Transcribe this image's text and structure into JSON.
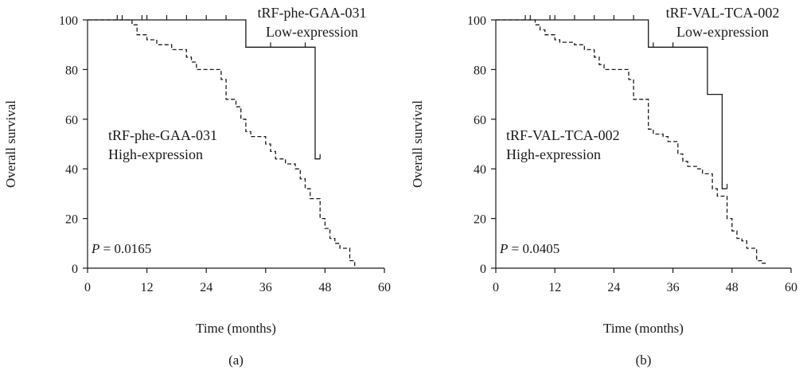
{
  "chart_data": [
    {
      "type": "line",
      "panel_label": "(a)",
      "xlabel": "Time (months)",
      "ylabel": "Overall survival",
      "xlim": [
        0,
        60
      ],
      "ylim": [
        0,
        100
      ],
      "xticks": [
        0,
        12,
        24,
        36,
        48,
        60
      ],
      "yticks": [
        0,
        20,
        40,
        60,
        80,
        100
      ],
      "p_label": "P",
      "p_value": "= 0.0165",
      "series": [
        {
          "label_lines": [
            "tRF-phe-GAA-031",
            "Low-expression"
          ],
          "style": "solid",
          "steps": [
            [
              0,
              100
            ],
            [
              32,
              100
            ],
            [
              32,
              89
            ],
            [
              46,
              89
            ],
            [
              46,
              44
            ],
            [
              47,
              44
            ]
          ],
          "censor": [
            [
              6,
              100
            ],
            [
              7,
              100
            ],
            [
              11,
              100
            ],
            [
              12,
              100
            ],
            [
              16,
              100
            ],
            [
              20,
              100
            ],
            [
              24,
              100
            ],
            [
              28,
              100
            ],
            [
              37,
              89
            ],
            [
              44,
              89
            ],
            [
              47,
              44
            ]
          ]
        },
        {
          "label_lines": [
            "tRF-phe-GAA-031",
            "High-expression"
          ],
          "style": "dashed",
          "steps": [
            [
              0,
              100
            ],
            [
              9,
              100
            ],
            [
              9,
              98
            ],
            [
              10,
              98
            ],
            [
              10,
              94
            ],
            [
              12,
              94
            ],
            [
              12,
              92
            ],
            [
              14,
              92
            ],
            [
              14,
              90
            ],
            [
              17,
              90
            ],
            [
              17,
              88
            ],
            [
              20,
              88
            ],
            [
              20,
              85
            ],
            [
              21,
              85
            ],
            [
              21,
              83
            ],
            [
              22,
              83
            ],
            [
              22,
              80
            ],
            [
              27,
              80
            ],
            [
              27,
              76
            ],
            [
              28,
              76
            ],
            [
              28,
              68
            ],
            [
              30,
              68
            ],
            [
              30,
              65
            ],
            [
              31,
              65
            ],
            [
              31,
              60
            ],
            [
              32,
              60
            ],
            [
              32,
              55
            ],
            [
              33,
              55
            ],
            [
              33,
              53
            ],
            [
              36,
              53
            ],
            [
              36,
              50
            ],
            [
              37,
              50
            ],
            [
              37,
              47
            ],
            [
              38,
              47
            ],
            [
              38,
              44
            ],
            [
              40,
              44
            ],
            [
              40,
              42
            ],
            [
              42,
              42
            ],
            [
              42,
              40
            ],
            [
              43,
              40
            ],
            [
              43,
              36
            ],
            [
              44,
              36
            ],
            [
              44,
              32
            ],
            [
              45,
              32
            ],
            [
              45,
              28
            ],
            [
              47,
              28
            ],
            [
              47,
              20
            ],
            [
              48,
              20
            ],
            [
              48,
              16
            ],
            [
              49,
              16
            ],
            [
              49,
              12
            ],
            [
              50,
              12
            ],
            [
              50,
              10
            ],
            [
              51,
              10
            ],
            [
              51,
              8
            ],
            [
              53,
              8
            ],
            [
              53,
              3
            ],
            [
              54,
              3
            ],
            [
              54,
              0
            ]
          ],
          "censor": []
        }
      ]
    },
    {
      "type": "line",
      "panel_label": "(b)",
      "xlabel": "Time (months)",
      "ylabel": "Overall survival",
      "xlim": [
        0,
        60
      ],
      "ylim": [
        0,
        100
      ],
      "xticks": [
        0,
        12,
        24,
        36,
        48,
        60
      ],
      "yticks": [
        0,
        20,
        40,
        60,
        80,
        100
      ],
      "p_label": "P",
      "p_value": "= 0.0405",
      "series": [
        {
          "label_lines": [
            "tRF-VAL-TCA-002",
            "Low-expression"
          ],
          "style": "solid",
          "steps": [
            [
              0,
              100
            ],
            [
              31,
              100
            ],
            [
              31,
              89
            ],
            [
              43,
              89
            ],
            [
              43,
              70
            ],
            [
              46,
              70
            ],
            [
              46,
              32
            ],
            [
              47,
              32
            ]
          ],
          "censor": [
            [
              6,
              100
            ],
            [
              7,
              100
            ],
            [
              11,
              100
            ],
            [
              12,
              100
            ],
            [
              16,
              100
            ],
            [
              20,
              100
            ],
            [
              24,
              100
            ],
            [
              28,
              100
            ],
            [
              32,
              89
            ],
            [
              36,
              89
            ],
            [
              47,
              32
            ]
          ]
        },
        {
          "label_lines": [
            "tRF-VAL-TCA-002",
            "High-expression"
          ],
          "style": "dashed",
          "steps": [
            [
              0,
              100
            ],
            [
              8,
              100
            ],
            [
              8,
              98
            ],
            [
              9,
              98
            ],
            [
              9,
              96
            ],
            [
              10,
              96
            ],
            [
              10,
              94
            ],
            [
              12,
              94
            ],
            [
              12,
              92
            ],
            [
              13,
              92
            ],
            [
              13,
              91
            ],
            [
              16,
              91
            ],
            [
              16,
              90
            ],
            [
              18,
              90
            ],
            [
              18,
              88
            ],
            [
              20,
              88
            ],
            [
              20,
              85
            ],
            [
              21,
              85
            ],
            [
              21,
              82
            ],
            [
              22,
              82
            ],
            [
              22,
              80
            ],
            [
              27,
              80
            ],
            [
              27,
              76
            ],
            [
              28,
              76
            ],
            [
              28,
              68
            ],
            [
              31,
              68
            ],
            [
              31,
              56
            ],
            [
              32,
              56
            ],
            [
              32,
              54
            ],
            [
              34,
              54
            ],
            [
              34,
              53
            ],
            [
              35,
              53
            ],
            [
              35,
              51
            ],
            [
              37,
              51
            ],
            [
              37,
              46
            ],
            [
              38,
              46
            ],
            [
              38,
              43
            ],
            [
              39,
              43
            ],
            [
              39,
              41
            ],
            [
              41,
              41
            ],
            [
              41,
              40
            ],
            [
              42,
              40
            ],
            [
              42,
              38
            ],
            [
              44,
              38
            ],
            [
              44,
              32
            ],
            [
              45,
              32
            ],
            [
              45,
              29
            ],
            [
              47,
              29
            ],
            [
              47,
              20
            ],
            [
              48,
              20
            ],
            [
              48,
              15
            ],
            [
              49,
              15
            ],
            [
              49,
              12
            ],
            [
              50,
              12
            ],
            [
              50,
              11
            ],
            [
              51,
              11
            ],
            [
              51,
              8
            ],
            [
              53,
              8
            ],
            [
              53,
              3
            ],
            [
              54,
              3
            ],
            [
              54,
              2
            ],
            [
              55,
              2
            ]
          ],
          "censor": []
        }
      ]
    }
  ]
}
